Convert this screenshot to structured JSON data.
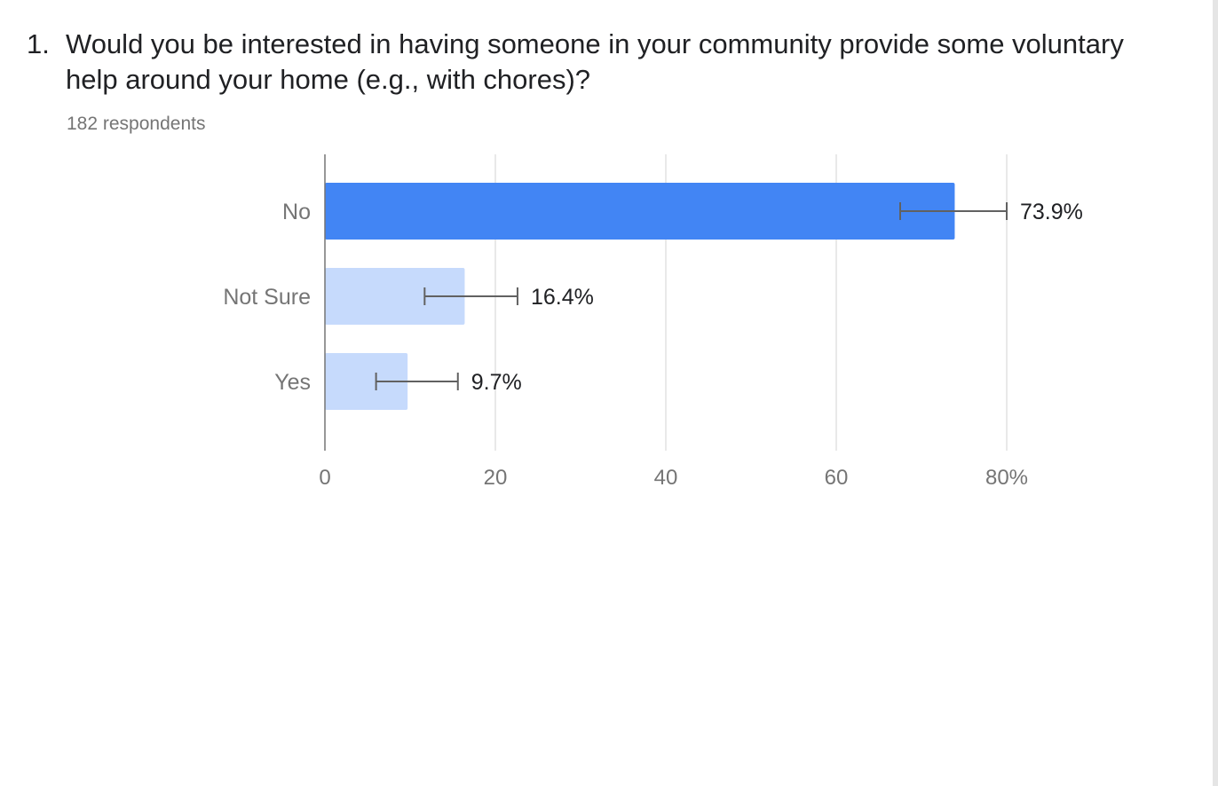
{
  "question": {
    "number": "1.",
    "text": "Would you be interested in having someone in your community provide some voluntary help around your home (e.g., with chores)?",
    "respondents": "182 respondents"
  },
  "colors": {
    "highlight_bar": "#4285f4",
    "bar": "#c6dafc",
    "gridline": "#dadada",
    "axis": "#757575",
    "error_bar": "#616161",
    "label": "#757575",
    "value_label": "#202124"
  },
  "chart_data": {
    "type": "bar",
    "orientation": "horizontal",
    "categories": [
      "No",
      "Not Sure",
      "Yes"
    ],
    "values": [
      73.9,
      16.4,
      9.7
    ],
    "value_labels": [
      "73.9%",
      "16.4%",
      "9.7%"
    ],
    "error_bars": [
      [
        67.5,
        80.0
      ],
      [
        11.7,
        22.6
      ],
      [
        6.0,
        15.6
      ]
    ],
    "highlighted_index": 0,
    "xlim": [
      0,
      80
    ],
    "xticks": [
      0,
      20,
      40,
      60,
      80
    ],
    "xtick_labels": [
      "0",
      "20",
      "40",
      "60",
      "80%"
    ],
    "grid": true,
    "legend": "none"
  }
}
